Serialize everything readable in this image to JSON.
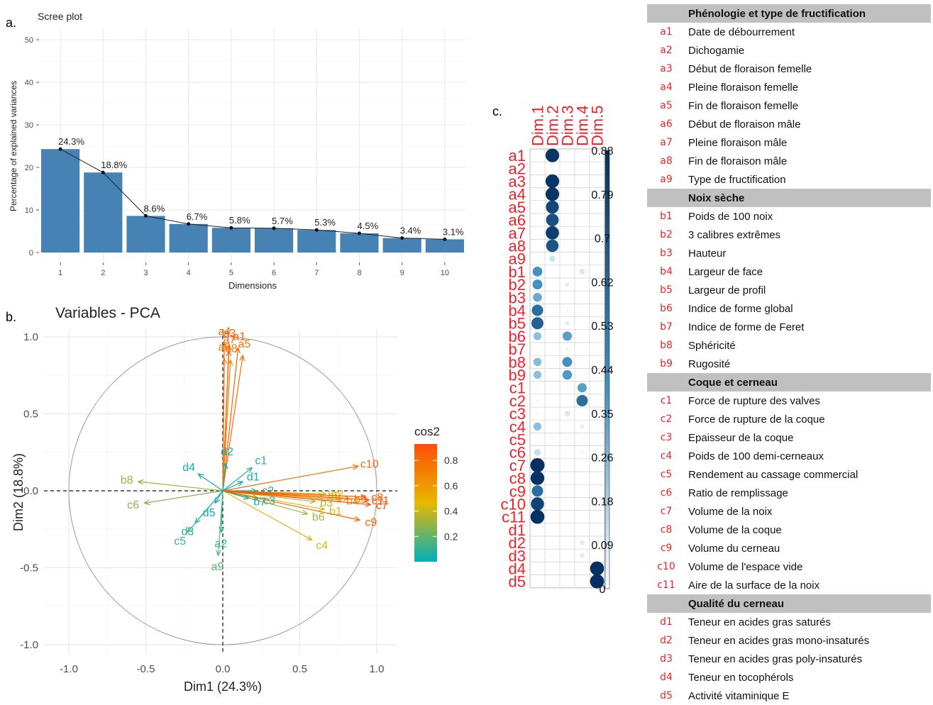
{
  "panels": {
    "a": "a.",
    "b": "b.",
    "c": "c."
  },
  "chart_data": [
    {
      "type": "bar",
      "title": "Scree plot",
      "xlabel": "Dimensions",
      "ylabel": "Percentage of explained variances",
      "ylim": [
        0,
        50
      ],
      "yticks": [
        "0",
        "10",
        "20",
        "30",
        "40",
        "50"
      ],
      "categories": [
        "1",
        "2",
        "3",
        "4",
        "5",
        "6",
        "7",
        "8",
        "9",
        "10"
      ],
      "values": [
        24.3,
        18.8,
        8.6,
        6.7,
        5.8,
        5.7,
        5.3,
        4.5,
        3.4,
        3.1
      ],
      "value_labels": [
        "24.3%",
        "18.8%",
        "8.6%",
        "6.7%",
        "5.8%",
        "5.7%",
        "5.3%",
        "4.5%",
        "3.4%",
        "3.1%"
      ],
      "bar_color": "#4682b4",
      "grid": true
    },
    {
      "type": "scatter",
      "title": "Variables - PCA",
      "xlabel": "Dim1 (24.3%)",
      "ylabel": "Dim2 (18.8%)",
      "xlim": [
        -1.0,
        1.0
      ],
      "ylim": [
        -1.0,
        1.0
      ],
      "xticks": [
        "-1.0",
        "-0.5",
        "0.0",
        "0.5",
        "1.0"
      ],
      "yticks": [
        "-1.0",
        "-0.5",
        "0.0",
        "0.5",
        "1.0"
      ],
      "legend_title": "cos2",
      "legend_ticks": [
        "0.2",
        "0.4",
        "0.6",
        "0.8"
      ],
      "legend_placement": "right",
      "gradient": [
        "#00afbb",
        "#e7b800",
        "#fc4e07"
      ],
      "variables": [
        {
          "name": "a1",
          "x": 0.1,
          "y": 0.93,
          "cos2": 0.86
        },
        {
          "name": "a3",
          "x": 0.04,
          "y": 0.95,
          "cos2": 0.86
        },
        {
          "name": "a4",
          "x": 0.01,
          "y": 0.96,
          "cos2": 0.86
        },
        {
          "name": "a5",
          "x": 0.13,
          "y": 0.88,
          "cos2": 0.8
        },
        {
          "name": "a6",
          "x": 0.01,
          "y": 0.86,
          "cos2": 0.74
        },
        {
          "name": "a7",
          "x": 0.04,
          "y": 0.91,
          "cos2": 0.82
        },
        {
          "name": "a8",
          "x": 0.05,
          "y": 0.85,
          "cos2": 0.72
        },
        {
          "name": "a2",
          "x": -0.01,
          "y": -0.27,
          "cos2": 0.08
        },
        {
          "name": "a9",
          "x": -0.03,
          "y": -0.42,
          "cos2": 0.18
        },
        {
          "name": "b1",
          "x": 0.66,
          "y": -0.12,
          "cos2": 0.45
        },
        {
          "name": "b2",
          "x": 0.67,
          "y": -0.02,
          "cos2": 0.45
        },
        {
          "name": "b3",
          "x": 0.6,
          "y": -0.07,
          "cos2": 0.37
        },
        {
          "name": "b4",
          "x": 0.77,
          "y": -0.06,
          "cos2": 0.6
        },
        {
          "name": "b5",
          "x": 0.82,
          "y": -0.05,
          "cos2": 0.67
        },
        {
          "name": "b6",
          "x": 0.55,
          "y": -0.15,
          "cos2": 0.33
        },
        {
          "name": "b7",
          "x": 0.17,
          "y": -0.05,
          "cos2": 0.03
        },
        {
          "name": "b8",
          "x": -0.55,
          "y": 0.06,
          "cos2": 0.31
        },
        {
          "name": "b9",
          "x": 0.65,
          "y": -0.03,
          "cos2": 0.42
        },
        {
          "name": "c1",
          "x": 0.19,
          "y": 0.15,
          "cos2": 0.06
        },
        {
          "name": "c2",
          "x": 0.22,
          "y": 0.0,
          "cos2": 0.05
        },
        {
          "name": "c3",
          "x": 0.23,
          "y": -0.05,
          "cos2": 0.06
        },
        {
          "name": "c4",
          "x": 0.58,
          "y": -0.32,
          "cos2": 0.44
        },
        {
          "name": "c5",
          "x": -0.23,
          "y": -0.27,
          "cos2": 0.13
        },
        {
          "name": "c6",
          "x": -0.51,
          "y": -0.08,
          "cos2": 0.27
        },
        {
          "name": "c7",
          "x": 0.96,
          "y": -0.09,
          "cos2": 0.93
        },
        {
          "name": "c8",
          "x": 0.93,
          "y": -0.04,
          "cos2": 0.87
        },
        {
          "name": "c9",
          "x": 0.89,
          "y": -0.19,
          "cos2": 0.83
        },
        {
          "name": "c10",
          "x": 0.88,
          "y": 0.16,
          "cos2": 0.8
        },
        {
          "name": "c11",
          "x": 0.95,
          "y": -0.06,
          "cos2": 0.9
        },
        {
          "name": "d1",
          "x": 0.13,
          "y": 0.06,
          "cos2": 0.02
        },
        {
          "name": "d2",
          "x": 0.02,
          "y": 0.18,
          "cos2": 0.03
        },
        {
          "name": "d3",
          "x": -0.18,
          "y": -0.21,
          "cos2": 0.08
        },
        {
          "name": "d4",
          "x": -0.16,
          "y": 0.11,
          "cos2": 0.04
        },
        {
          "name": "d5",
          "x": -0.05,
          "y": -0.08,
          "cos2": 0.01
        }
      ]
    },
    {
      "type": "heatmap",
      "columns": [
        "Dim.1",
        "Dim.2",
        "Dim.3",
        "Dim.4",
        "Dim.5"
      ],
      "rows": [
        "a1",
        "a2",
        "a3",
        "a4",
        "a5",
        "a6",
        "a7",
        "a8",
        "a9",
        "b1",
        "b2",
        "b3",
        "b4",
        "b5",
        "b6",
        "b7",
        "b8",
        "b9",
        "c1",
        "c2",
        "c3",
        "c4",
        "c5",
        "c6",
        "c7",
        "c8",
        "c9",
        "c10",
        "c11",
        "d1",
        "d2",
        "d3",
        "d4",
        "d5"
      ],
      "legend_ticks": [
        "0",
        "0.09",
        "0.18",
        "0.26",
        "0.35",
        "0.44",
        "0.53",
        "0.62",
        "0.7",
        "0.79",
        "0.88"
      ],
      "value_range": [
        0,
        0.88
      ],
      "values": [
        [
          0.01,
          0.86,
          0.0,
          0.0,
          0.0
        ],
        [
          0.0,
          0.05,
          0.0,
          0.0,
          0.0
        ],
        [
          0.0,
          0.86,
          0.0,
          0.0,
          0.0
        ],
        [
          0.0,
          0.86,
          0.0,
          0.0,
          0.0
        ],
        [
          0.02,
          0.78,
          0.0,
          0.0,
          0.0
        ],
        [
          0.0,
          0.74,
          0.0,
          0.0,
          0.0
        ],
        [
          0.0,
          0.82,
          0.0,
          0.0,
          0.0
        ],
        [
          0.0,
          0.72,
          0.0,
          0.0,
          0.0
        ],
        [
          0.0,
          0.18,
          0.0,
          0.0,
          0.0
        ],
        [
          0.44,
          0.01,
          0.0,
          0.15,
          0.0
        ],
        [
          0.45,
          0.0,
          0.1,
          0.0,
          0.0
        ],
        [
          0.37,
          0.0,
          0.0,
          0.0,
          0.0
        ],
        [
          0.6,
          0.0,
          0.05,
          0.0,
          0.0
        ],
        [
          0.67,
          0.0,
          0.1,
          0.02,
          0.0
        ],
        [
          0.3,
          0.02,
          0.4,
          0.03,
          0.0
        ],
        [
          0.03,
          0.0,
          0.07,
          0.0,
          0.0
        ],
        [
          0.31,
          0.0,
          0.45,
          0.03,
          0.0
        ],
        [
          0.3,
          0.0,
          0.42,
          0.02,
          0.0
        ],
        [
          0.04,
          0.02,
          0.0,
          0.4,
          0.0
        ],
        [
          0.05,
          0.0,
          0.02,
          0.6,
          0.0
        ],
        [
          0.05,
          0.0,
          0.15,
          0.03,
          0.0
        ],
        [
          0.3,
          0.0,
          0.0,
          0.1,
          0.0
        ],
        [
          0.02,
          0.05,
          0.06,
          0.04,
          0.0
        ],
        [
          0.2,
          0.0,
          0.0,
          0.06,
          0.0
        ],
        [
          0.93,
          0.01,
          0.0,
          0.0,
          0.0
        ],
        [
          0.87,
          0.0,
          0.0,
          0.02,
          0.0
        ],
        [
          0.6,
          0.0,
          0.0,
          0.0,
          0.0
        ],
        [
          0.8,
          0.03,
          0.0,
          0.04,
          0.0
        ],
        [
          0.9,
          0.0,
          0.0,
          0.0,
          0.0
        ],
        [
          0.02,
          0.0,
          0.0,
          0.0,
          0.0
        ],
        [
          0.0,
          0.03,
          0.0,
          0.12,
          0.0
        ],
        [
          0.03,
          0.04,
          0.0,
          0.12,
          0.0
        ],
        [
          0.0,
          0.0,
          0.0,
          0.02,
          0.9
        ],
        [
          0.0,
          0.0,
          0.0,
          0.0,
          0.92
        ]
      ]
    }
  ],
  "legend_table": [
    {
      "header": "Phénologie et type de fructification"
    },
    {
      "code": "a1",
      "label": "Date de débourrement"
    },
    {
      "code": "a2",
      "label": "Dichogamie"
    },
    {
      "code": "a3",
      "label": "Début de floraison femelle"
    },
    {
      "code": "a4",
      "label": "Pleine floraison femelle"
    },
    {
      "code": "a5",
      "label": "Fin de floraison femelle"
    },
    {
      "code": "a6",
      "label": "Début de floraison mâle"
    },
    {
      "code": "a7",
      "label": "Pleine floraison mâle"
    },
    {
      "code": "a8",
      "label": "Fin de floraison mâle"
    },
    {
      "code": "a9",
      "label": "Type de fructification"
    },
    {
      "header": "Noix sèche"
    },
    {
      "code": "b1",
      "label": "Poids de 100 noix"
    },
    {
      "code": "b2",
      "label": "3 calibres extrêmes"
    },
    {
      "code": "b3",
      "label": "Hauteur"
    },
    {
      "code": "b4",
      "label": "Largeur de face"
    },
    {
      "code": "b5",
      "label": "Largeur de profil"
    },
    {
      "code": "b6",
      "label": "Indice de forme global"
    },
    {
      "code": "b7",
      "label": "Indice de forme de Feret"
    },
    {
      "code": "b8",
      "label": "Sphéricité"
    },
    {
      "code": "b9",
      "label": "Rugosité"
    },
    {
      "header": "Coque et cerneau"
    },
    {
      "code": "c1",
      "label": "Force de rupture des valves"
    },
    {
      "code": "c2",
      "label": "Force de rupture de la coque"
    },
    {
      "code": "c3",
      "label": "Epaisseur de la coque"
    },
    {
      "code": "c4",
      "label": "Poids de 100 demi-cerneaux"
    },
    {
      "code": "c5",
      "label": "Rendement au cassage commercial"
    },
    {
      "code": "c6",
      "label": "Ratio de remplissage"
    },
    {
      "code": "c7",
      "label": "Volume de la noix"
    },
    {
      "code": "c8",
      "label": "Volume de la coque"
    },
    {
      "code": "c9",
      "label": "Volume du cerneau"
    },
    {
      "code": "c10",
      "label": "Volume de l'espace vide"
    },
    {
      "code": "c11",
      "label": "Aire de la surface de la noix"
    },
    {
      "header": "Qualité du cerneau"
    },
    {
      "code": "d1",
      "label": "Teneur en acides gras saturés"
    },
    {
      "code": "d2",
      "label": "Teneur en acides gras mono-insaturés"
    },
    {
      "code": "d3",
      "label": "Teneur en acides gras poly-insaturés"
    },
    {
      "code": "d4",
      "label": "Teneur en tocophérols"
    },
    {
      "code": "d5",
      "label": "Activité vitaminique E"
    }
  ]
}
